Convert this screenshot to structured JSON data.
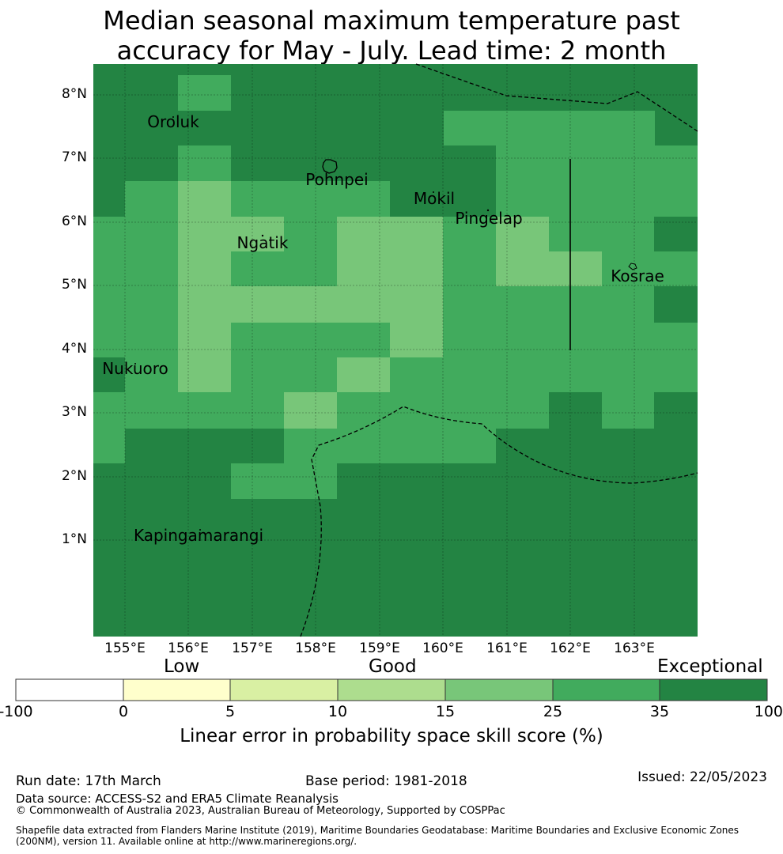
{
  "title_line1": "Median seasonal maximum temperature past",
  "title_line2": "accuracy for May - July. Lead time: 2 month",
  "map": {
    "lat_labels": [
      "8°N",
      "7°N",
      "6°N",
      "5°N",
      "4°N",
      "3°N",
      "2°N",
      "1°N"
    ],
    "lon_labels": [
      "155°E",
      "156°E",
      "157°E",
      "158°E",
      "159°E",
      "160°E",
      "161°E",
      "162°E",
      "163°E"
    ],
    "places": [
      "Oroluk",
      "Pohnpei",
      "Mokil",
      "Pingelap",
      "Ngatik",
      "Kosrae",
      "Nukuoro",
      "Kapingamarangi"
    ],
    "skill_colors": {
      "c15": "#78c679",
      "c25": "#41ab5d",
      "c35": "#238443"
    }
  },
  "colorbar": {
    "categories": [
      "Low",
      "Good",
      "Exceptional"
    ],
    "ticks": [
      "-100",
      "0",
      "5",
      "10",
      "15",
      "25",
      "35",
      "100"
    ],
    "colors": [
      "#ffffff",
      "#ffffcc",
      "#d9f0a3",
      "#addd8e",
      "#78c679",
      "#41ab5d",
      "#238443"
    ],
    "label": "Linear error in probability space skill score (%)"
  },
  "footer": {
    "run_date": "Run date: 17th March",
    "base_period": "Base period: 1981-2018",
    "issued": "Issued: 22/05/2023",
    "data_source": "Data source: ACCESS-S2 and ERA5 Climate Reanalysis",
    "copyright": "© Commonwealth of Australia 2023, Australian Bureau of Meteorology, Supported by COSPPac",
    "shapefile_line1": "Shapefile data extracted from Flanders Marine Institute (2019), Maritime Boundaries Geodatabase: Maritime Boundaries and Exclusive Economic Zones",
    "shapefile_line2": "(200NM), version 11. Available online at http://www.marineregions.org/."
  }
}
